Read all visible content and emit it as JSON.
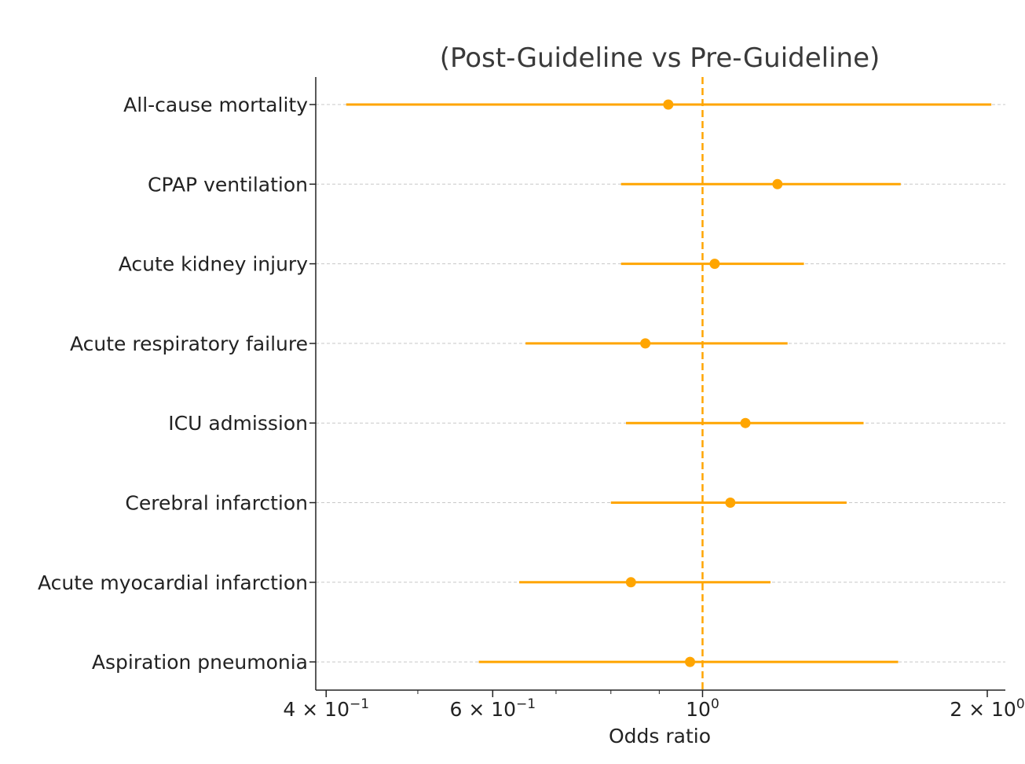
{
  "chart_data": {
    "type": "forest",
    "title": "(Post-Guideline vs Pre-Guideline)",
    "xlabel": "Odds ratio",
    "ylabel": "",
    "xscale": "log",
    "xlim": [
      0.39,
      2.09
    ],
    "x_ticks": [
      {
        "value": 0.4,
        "label": "4 × 10",
        "exp": "−1"
      },
      {
        "value": 0.6,
        "label": "6 × 10",
        "exp": "−1"
      },
      {
        "value": 1.0,
        "label": "10",
        "exp": "0"
      },
      {
        "value": 2.0,
        "label": "2 × 10",
        "exp": "0"
      }
    ],
    "reference_line": 1.0,
    "grid": "horizontal dashed",
    "color": "#FFA500",
    "rows": [
      {
        "label": "All-cause mortality",
        "or": 0.92,
        "ci_low": 0.42,
        "ci_high": 2.02
      },
      {
        "label": "CPAP ventilation",
        "or": 1.2,
        "ci_low": 0.82,
        "ci_high": 1.62
      },
      {
        "label": "Acute kidney injury",
        "or": 1.03,
        "ci_low": 0.82,
        "ci_high": 1.28
      },
      {
        "label": "Acute respiratory failure",
        "or": 0.87,
        "ci_low": 0.65,
        "ci_high": 1.23
      },
      {
        "label": "ICU admission",
        "or": 1.11,
        "ci_low": 0.83,
        "ci_high": 1.48
      },
      {
        "label": "Cerebral infarction",
        "or": 1.07,
        "ci_low": 0.8,
        "ci_high": 1.42
      },
      {
        "label": "Acute myocardial infarction",
        "or": 0.84,
        "ci_low": 0.64,
        "ci_high": 1.18
      },
      {
        "label": "Aspiration pneumonia",
        "or": 0.97,
        "ci_low": 0.58,
        "ci_high": 1.61
      }
    ]
  }
}
